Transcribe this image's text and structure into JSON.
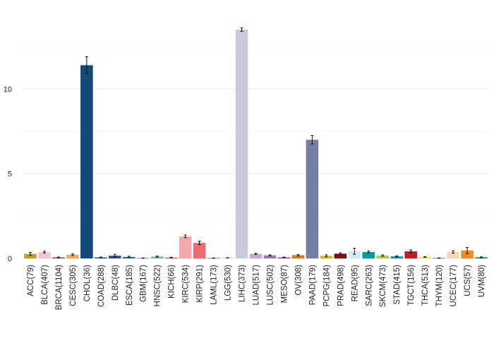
{
  "chart_data": {
    "type": "bar",
    "categories": [
      "ACC(79)",
      "BLCA(407)",
      "BRCA(1104)",
      "CESC(305)",
      "CHOL(36)",
      "COAD(288)",
      "DLBC(48)",
      "ESCA(185)",
      "GBM(167)",
      "HNSC(522)",
      "KICH(66)",
      "KIRC(534)",
      "KIRP(291)",
      "LAML(173)",
      "LGG(530)",
      "LIHC(373)",
      "LUAD(517)",
      "LUSC(502)",
      "MESO(87)",
      "OV(308)",
      "PAAD(179)",
      "PCPG(184)",
      "PRAD(498)",
      "READ(95)",
      "SARC(263)",
      "SKCM(473)",
      "STAD(415)",
      "TGCT(156)",
      "THCA(513)",
      "THYM(120)",
      "UCEC(177)",
      "UCS(57)",
      "UVM(80)"
    ],
    "values": [
      0.27,
      0.37,
      0.06,
      0.22,
      11.4,
      0.06,
      0.16,
      0.09,
      0.02,
      0.11,
      0.05,
      1.3,
      0.92,
      0.02,
      0.04,
      13.5,
      0.27,
      0.18,
      0.06,
      0.19,
      7.0,
      0.15,
      0.28,
      0.42,
      0.38,
      0.17,
      0.12,
      0.42,
      0.09,
      0.02,
      0.38,
      0.47,
      0.07
    ],
    "errors": [
      0.09,
      0.05,
      0.02,
      0.05,
      0.5,
      0.02,
      0.08,
      0.04,
      0.01,
      0.03,
      0.02,
      0.08,
      0.1,
      0.01,
      0.01,
      0.1,
      0.04,
      0.03,
      0.02,
      0.04,
      0.25,
      0.06,
      0.05,
      0.18,
      0.06,
      0.04,
      0.03,
      0.08,
      0.02,
      0.01,
      0.07,
      0.18,
      0.02
    ],
    "colors": [
      "#bba02c",
      "#f7c5d2",
      "#7d3f80",
      "#f5a962",
      "#14477a",
      "#234f86",
      "#2d4c8c",
      "#2d6e96",
      "#2e4a5c",
      "#79b49b",
      "#d45a5a",
      "#f2a9ad",
      "#ea6d73",
      "#5c2a3a",
      "#f0c9cc",
      "#c9cbdd",
      "#c9a9d8",
      "#9a78b6",
      "#7a4a8a",
      "#d57c27",
      "#737fa6",
      "#d8b427",
      "#7a1414",
      "#d3ecf7",
      "#0b9b98",
      "#b6c84a",
      "#1b8bc4",
      "#b8202b",
      "#e9e054",
      "#2b2b2b",
      "#f5d6b8",
      "#f08b25",
      "#1d8a4a"
    ],
    "ylim": [
      0,
      14
    ],
    "yticks": [
      0,
      5,
      10
    ],
    "grid": true
  }
}
